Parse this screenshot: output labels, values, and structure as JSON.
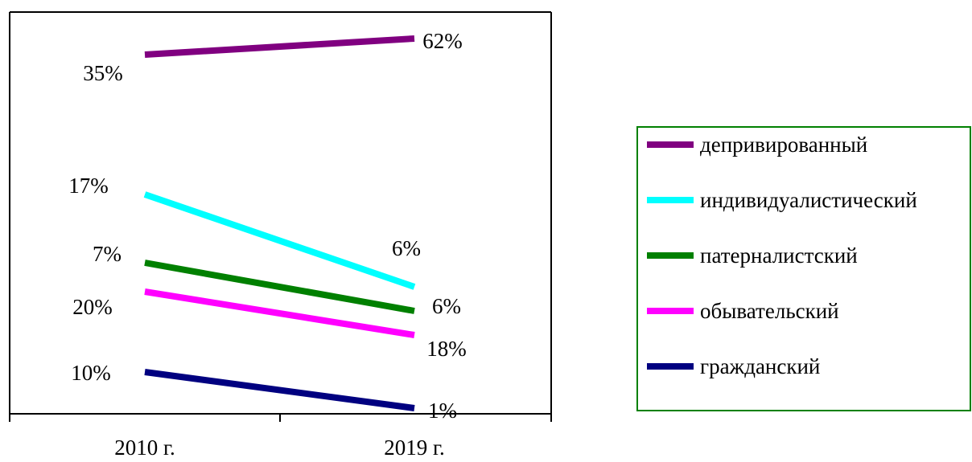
{
  "chart_data": {
    "type": "line",
    "categories": [
      "2010 г.",
      "2019 г."
    ],
    "series": [
      {
        "name": "депривированный",
        "values": [
          35,
          62
        ],
        "labels": [
          "35%",
          "62%"
        ],
        "color": "#800080"
      },
      {
        "name": "индивидуалистический",
        "values": [
          17,
          6
        ],
        "labels": [
          "17%",
          "6%"
        ],
        "color": "#00ffff"
      },
      {
        "name": "патерналистский",
        "values": [
          7,
          6
        ],
        "labels": [
          "7%",
          "6%"
        ],
        "color": "#008000"
      },
      {
        "name": "обывательский",
        "values": [
          20,
          18
        ],
        "labels": [
          "20%",
          "18%"
        ],
        "color": "#ff00ff"
      },
      {
        "name": "гражданский",
        "values": [
          10,
          1
        ],
        "labels": [
          "10%",
          "1%"
        ],
        "color": "#000080"
      }
    ],
    "title": "",
    "xlabel": "",
    "ylabel": "",
    "grid": false,
    "legend_position": "right",
    "legend_border_color": "#008000"
  }
}
